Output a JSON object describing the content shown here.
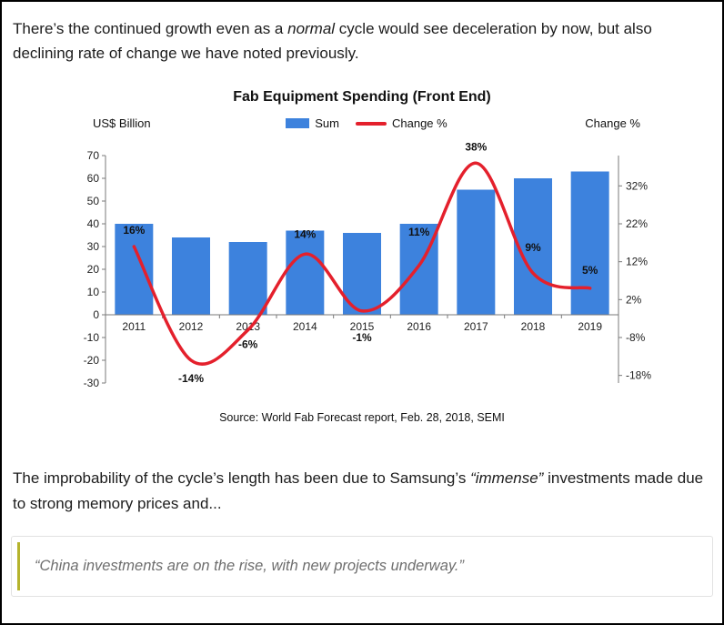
{
  "page": {
    "intro": {
      "part1": "There’s the continued growth even as a ",
      "emphasis": "normal",
      "part2": " cycle would see deceleration by now, but also declining rate of change we have noted previously."
    },
    "analysis": {
      "part1": "The improbability of the cycle’s length has been due to Samsung’s ",
      "emphasis": "“immense”",
      "part2": " investments made due to strong memory prices and..."
    },
    "quote": {
      "text": "“China investments are on the rise, with new projects underway.”",
      "accent_color": "#b5b32c"
    }
  },
  "chart_data": {
    "type": "bar",
    "title": "Fab Equipment Spending (Front End)",
    "categories": [
      "2011",
      "2012",
      "2013",
      "2014",
      "2015",
      "2016",
      "2017",
      "2018",
      "2019"
    ],
    "series": [
      {
        "name": "Sum",
        "type": "bar",
        "axis": "left",
        "color": "#3d82dd",
        "values": [
          40,
          34,
          32,
          37,
          36,
          40,
          55,
          60,
          63
        ]
      },
      {
        "name": "Change %",
        "type": "line",
        "axis": "right",
        "color": "#e4202c",
        "values": [
          16,
          -14,
          -6,
          14,
          -1,
          11,
          38,
          9,
          5
        ],
        "labels": [
          "16%",
          "-14%",
          "-6%",
          "14%",
          "-1%",
          "11%",
          "38%",
          "9%",
          "5%"
        ],
        "label_dy": [
          -14,
          24,
          20,
          -18,
          33,
          -33,
          -14,
          -24,
          -16
        ]
      }
    ],
    "left_axis": {
      "label": "US$ Billion",
      "min": -30,
      "max": 70,
      "ticks": [
        70,
        60,
        50,
        40,
        30,
        20,
        10,
        0,
        -10,
        -20,
        -30
      ]
    },
    "right_axis": {
      "label": "Change %",
      "min": -20,
      "max": 40,
      "tick_values": [
        32,
        22,
        12,
        2,
        -8,
        -18
      ],
      "tick_labels": [
        "32%",
        "22%",
        "12%",
        "2%",
        "-8%",
        "-18%"
      ]
    },
    "legend": [
      "Sum",
      "Change %"
    ],
    "legend_position": "top",
    "grid": false,
    "source": "Source: World Fab Forecast report, Feb. 28, 2018, SEMI"
  }
}
